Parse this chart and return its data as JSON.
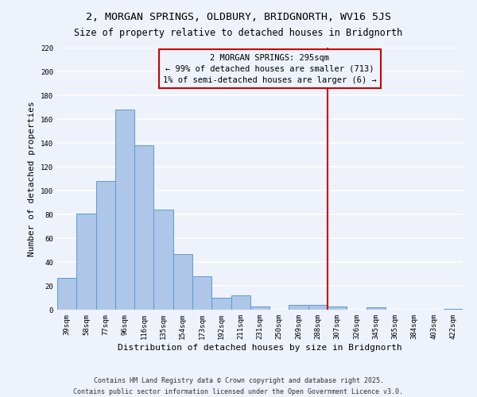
{
  "title": "2, MORGAN SPRINGS, OLDBURY, BRIDGNORTH, WV16 5JS",
  "subtitle": "Size of property relative to detached houses in Bridgnorth",
  "xlabel": "Distribution of detached houses by size in Bridgnorth",
  "ylabel": "Number of detached properties",
  "bar_labels": [
    "39sqm",
    "58sqm",
    "77sqm",
    "96sqm",
    "116sqm",
    "135sqm",
    "154sqm",
    "173sqm",
    "192sqm",
    "211sqm",
    "231sqm",
    "250sqm",
    "269sqm",
    "288sqm",
    "307sqm",
    "326sqm",
    "345sqm",
    "365sqm",
    "384sqm",
    "403sqm",
    "422sqm"
  ],
  "bar_heights": [
    27,
    81,
    108,
    168,
    138,
    84,
    47,
    28,
    10,
    12,
    3,
    0,
    4,
    4,
    3,
    0,
    2,
    0,
    0,
    0,
    1
  ],
  "bar_color": "#aec6e8",
  "bar_edge_color": "#5b9bd5",
  "vline_x_idx": 13.5,
  "vline_color": "#cc0000",
  "annotation_title": "2 MORGAN SPRINGS: 295sqm",
  "annotation_line1": "← 99% of detached houses are smaller (713)",
  "annotation_line2": "1% of semi-detached houses are larger (6) →",
  "annotation_box_color": "#cc0000",
  "ylim": [
    0,
    220
  ],
  "yticks": [
    0,
    20,
    40,
    60,
    80,
    100,
    120,
    140,
    160,
    180,
    200,
    220
  ],
  "footer_line1": "Contains HM Land Registry data © Crown copyright and database right 2025.",
  "footer_line2": "Contains public sector information licensed under the Open Government Licence v3.0.",
  "bg_color": "#eef2fb",
  "grid_color": "#ffffff",
  "title_fontsize": 9.5,
  "subtitle_fontsize": 8.5,
  "axis_label_fontsize": 8,
  "tick_fontsize": 6.5,
  "footer_fontsize": 6,
  "annotation_fontsize": 7.5
}
